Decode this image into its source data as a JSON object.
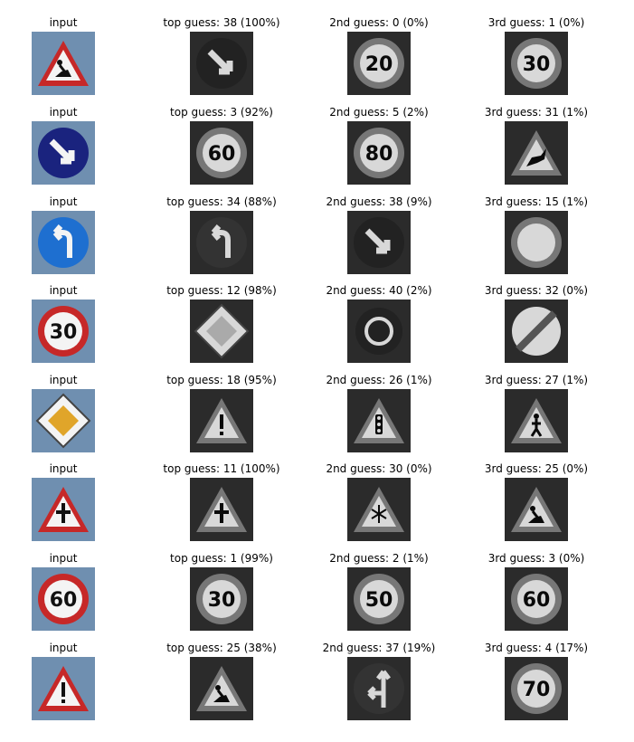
{
  "rows": [
    {
      "input": {
        "caption": "input",
        "sign": "roadwork-triangle"
      },
      "guesses": [
        {
          "caption": "top guess: 38 (100%)",
          "sign": "keep-right"
        },
        {
          "caption": "2nd guess: 0 (0%)",
          "sign": "speed-20"
        },
        {
          "caption": "3rd guess: 1 (0%)",
          "sign": "speed-30"
        }
      ]
    },
    {
      "input": {
        "caption": "input",
        "sign": "keep-right"
      },
      "guesses": [
        {
          "caption": "top guess: 3 (92%)",
          "sign": "speed-60"
        },
        {
          "caption": "2nd guess: 5 (2%)",
          "sign": "speed-80"
        },
        {
          "caption": "3rd guess: 31 (1%)",
          "sign": "wild-animals"
        }
      ]
    },
    {
      "input": {
        "caption": "input",
        "sign": "turn-left"
      },
      "guesses": [
        {
          "caption": "top guess: 34 (88%)",
          "sign": "turn-left"
        },
        {
          "caption": "2nd guess: 38 (9%)",
          "sign": "keep-right"
        },
        {
          "caption": "3rd guess: 15 (1%)",
          "sign": "no-vehicles"
        }
      ]
    },
    {
      "input": {
        "caption": "input",
        "sign": "speed-30"
      },
      "guesses": [
        {
          "caption": "top guess: 12 (98%)",
          "sign": "priority-road"
        },
        {
          "caption": "2nd guess: 40 (2%)",
          "sign": "roundabout"
        },
        {
          "caption": "3rd guess: 32 (0%)",
          "sign": "end-limits"
        }
      ]
    },
    {
      "input": {
        "caption": "input",
        "sign": "priority-road"
      },
      "guesses": [
        {
          "caption": "top guess: 18 (95%)",
          "sign": "general-caution"
        },
        {
          "caption": "2nd guess: 26 (1%)",
          "sign": "traffic-signals"
        },
        {
          "caption": "3rd guess: 27 (1%)",
          "sign": "pedestrians"
        }
      ]
    },
    {
      "input": {
        "caption": "input",
        "sign": "right-of-way"
      },
      "guesses": [
        {
          "caption": "top guess: 11 (100%)",
          "sign": "right-of-way"
        },
        {
          "caption": "2nd guess: 30 (0%)",
          "sign": "ice-snow"
        },
        {
          "caption": "3rd guess: 25 (0%)",
          "sign": "roadwork-triangle"
        }
      ]
    },
    {
      "input": {
        "caption": "input",
        "sign": "speed-60"
      },
      "guesses": [
        {
          "caption": "top guess: 1 (99%)",
          "sign": "speed-30"
        },
        {
          "caption": "2nd guess: 2 (1%)",
          "sign": "speed-50"
        },
        {
          "caption": "3rd guess: 3 (0%)",
          "sign": "speed-60"
        }
      ]
    },
    {
      "input": {
        "caption": "input",
        "sign": "general-caution"
      },
      "guesses": [
        {
          "caption": "top guess: 25 (38%)",
          "sign": "roadwork-triangle"
        },
        {
          "caption": "2nd guess: 37 (19%)",
          "sign": "straight-or-left"
        },
        {
          "caption": "3rd guess: 4 (17%)",
          "sign": "speed-70"
        }
      ]
    }
  ]
}
